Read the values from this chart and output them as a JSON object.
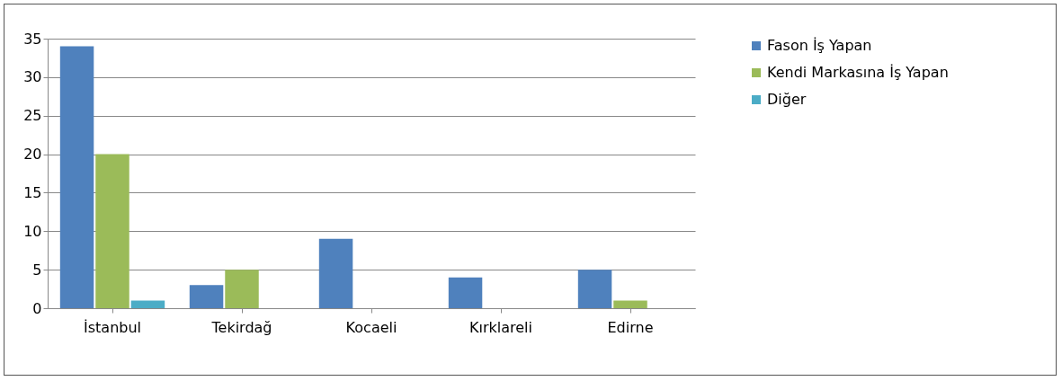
{
  "chart_data": {
    "type": "bar",
    "categories": [
      "İstanbul",
      "Tekirdağ",
      "Kocaeli",
      "Kırklareli",
      "Edirne"
    ],
    "series": [
      {
        "name": "Fason İş Yapan",
        "color": "#4f81bd",
        "values": [
          34,
          3,
          9,
          4,
          5
        ]
      },
      {
        "name": "Kendi Markasına İş Yapan",
        "color": "#9bbb59",
        "values": [
          20,
          5,
          0,
          0,
          1
        ]
      },
      {
        "name": "Diğer",
        "color": "#4bacc6",
        "values": [
          1,
          0,
          0,
          0,
          0
        ]
      }
    ],
    "ylim": [
      0,
      35
    ],
    "yticks": [
      0,
      5,
      10,
      15,
      20,
      25,
      30,
      35
    ],
    "grid": "y",
    "legend": "right"
  }
}
